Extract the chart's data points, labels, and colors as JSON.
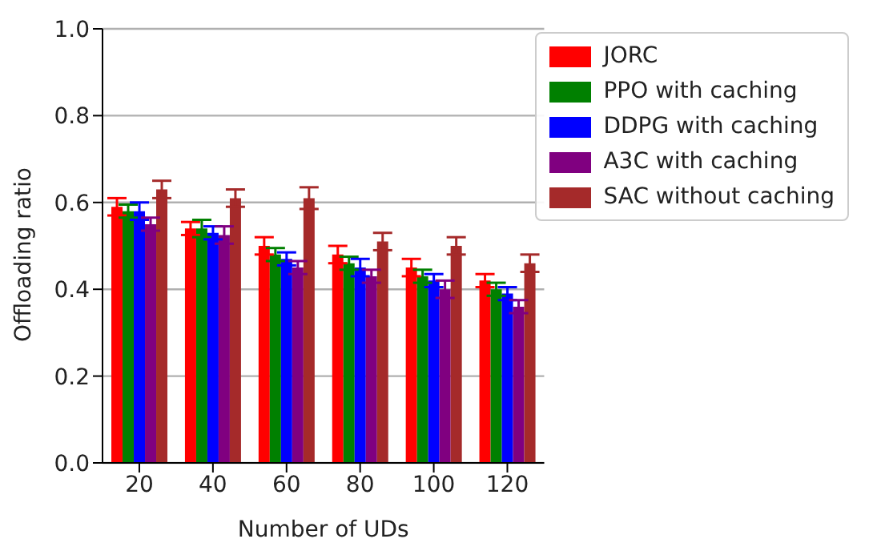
{
  "chart_data": {
    "type": "bar",
    "xlabel": "Number of UDs",
    "ylabel": "Offloading ratio",
    "categories": [
      "20",
      "40",
      "60",
      "80",
      "100",
      "120"
    ],
    "series": [
      {
        "name": "JORC",
        "color": "#ff0000",
        "values": [
          0.59,
          0.54,
          0.5,
          0.48,
          0.45,
          0.42
        ],
        "errors": [
          0.02,
          0.015,
          0.02,
          0.02,
          0.02,
          0.015
        ]
      },
      {
        "name": "PPO with caching",
        "color": "#008000",
        "values": [
          0.58,
          0.54,
          0.48,
          0.46,
          0.43,
          0.4
        ],
        "errors": [
          0.015,
          0.02,
          0.015,
          0.015,
          0.015,
          0.015
        ]
      },
      {
        "name": "DDPG with caching",
        "color": "#0000ff",
        "values": [
          0.58,
          0.53,
          0.47,
          0.45,
          0.42,
          0.39
        ],
        "errors": [
          0.02,
          0.015,
          0.015,
          0.02,
          0.015,
          0.015
        ]
      },
      {
        "name": "A3C with caching",
        "color": "#800080",
        "values": [
          0.55,
          0.525,
          0.45,
          0.43,
          0.4,
          0.36
        ],
        "errors": [
          0.015,
          0.02,
          0.015,
          0.015,
          0.02,
          0.015
        ]
      },
      {
        "name": "SAC without caching",
        "color": "#a52a2a",
        "values": [
          0.63,
          0.61,
          0.61,
          0.51,
          0.5,
          0.46
        ],
        "errors": [
          0.02,
          0.02,
          0.025,
          0.02,
          0.02,
          0.02
        ]
      }
    ],
    "ylim": [
      0,
      1
    ],
    "yticks": [
      {
        "value": 0,
        "label": "0.0"
      },
      {
        "value": 0.2,
        "label": "0.2"
      },
      {
        "value": 0.4,
        "label": "0.4"
      },
      {
        "value": 0.6,
        "label": "0.6"
      },
      {
        "value": 0.8,
        "label": "0.8"
      },
      {
        "value": 1,
        "label": "1.0"
      }
    ],
    "grid": "y",
    "legend": "top right"
  }
}
